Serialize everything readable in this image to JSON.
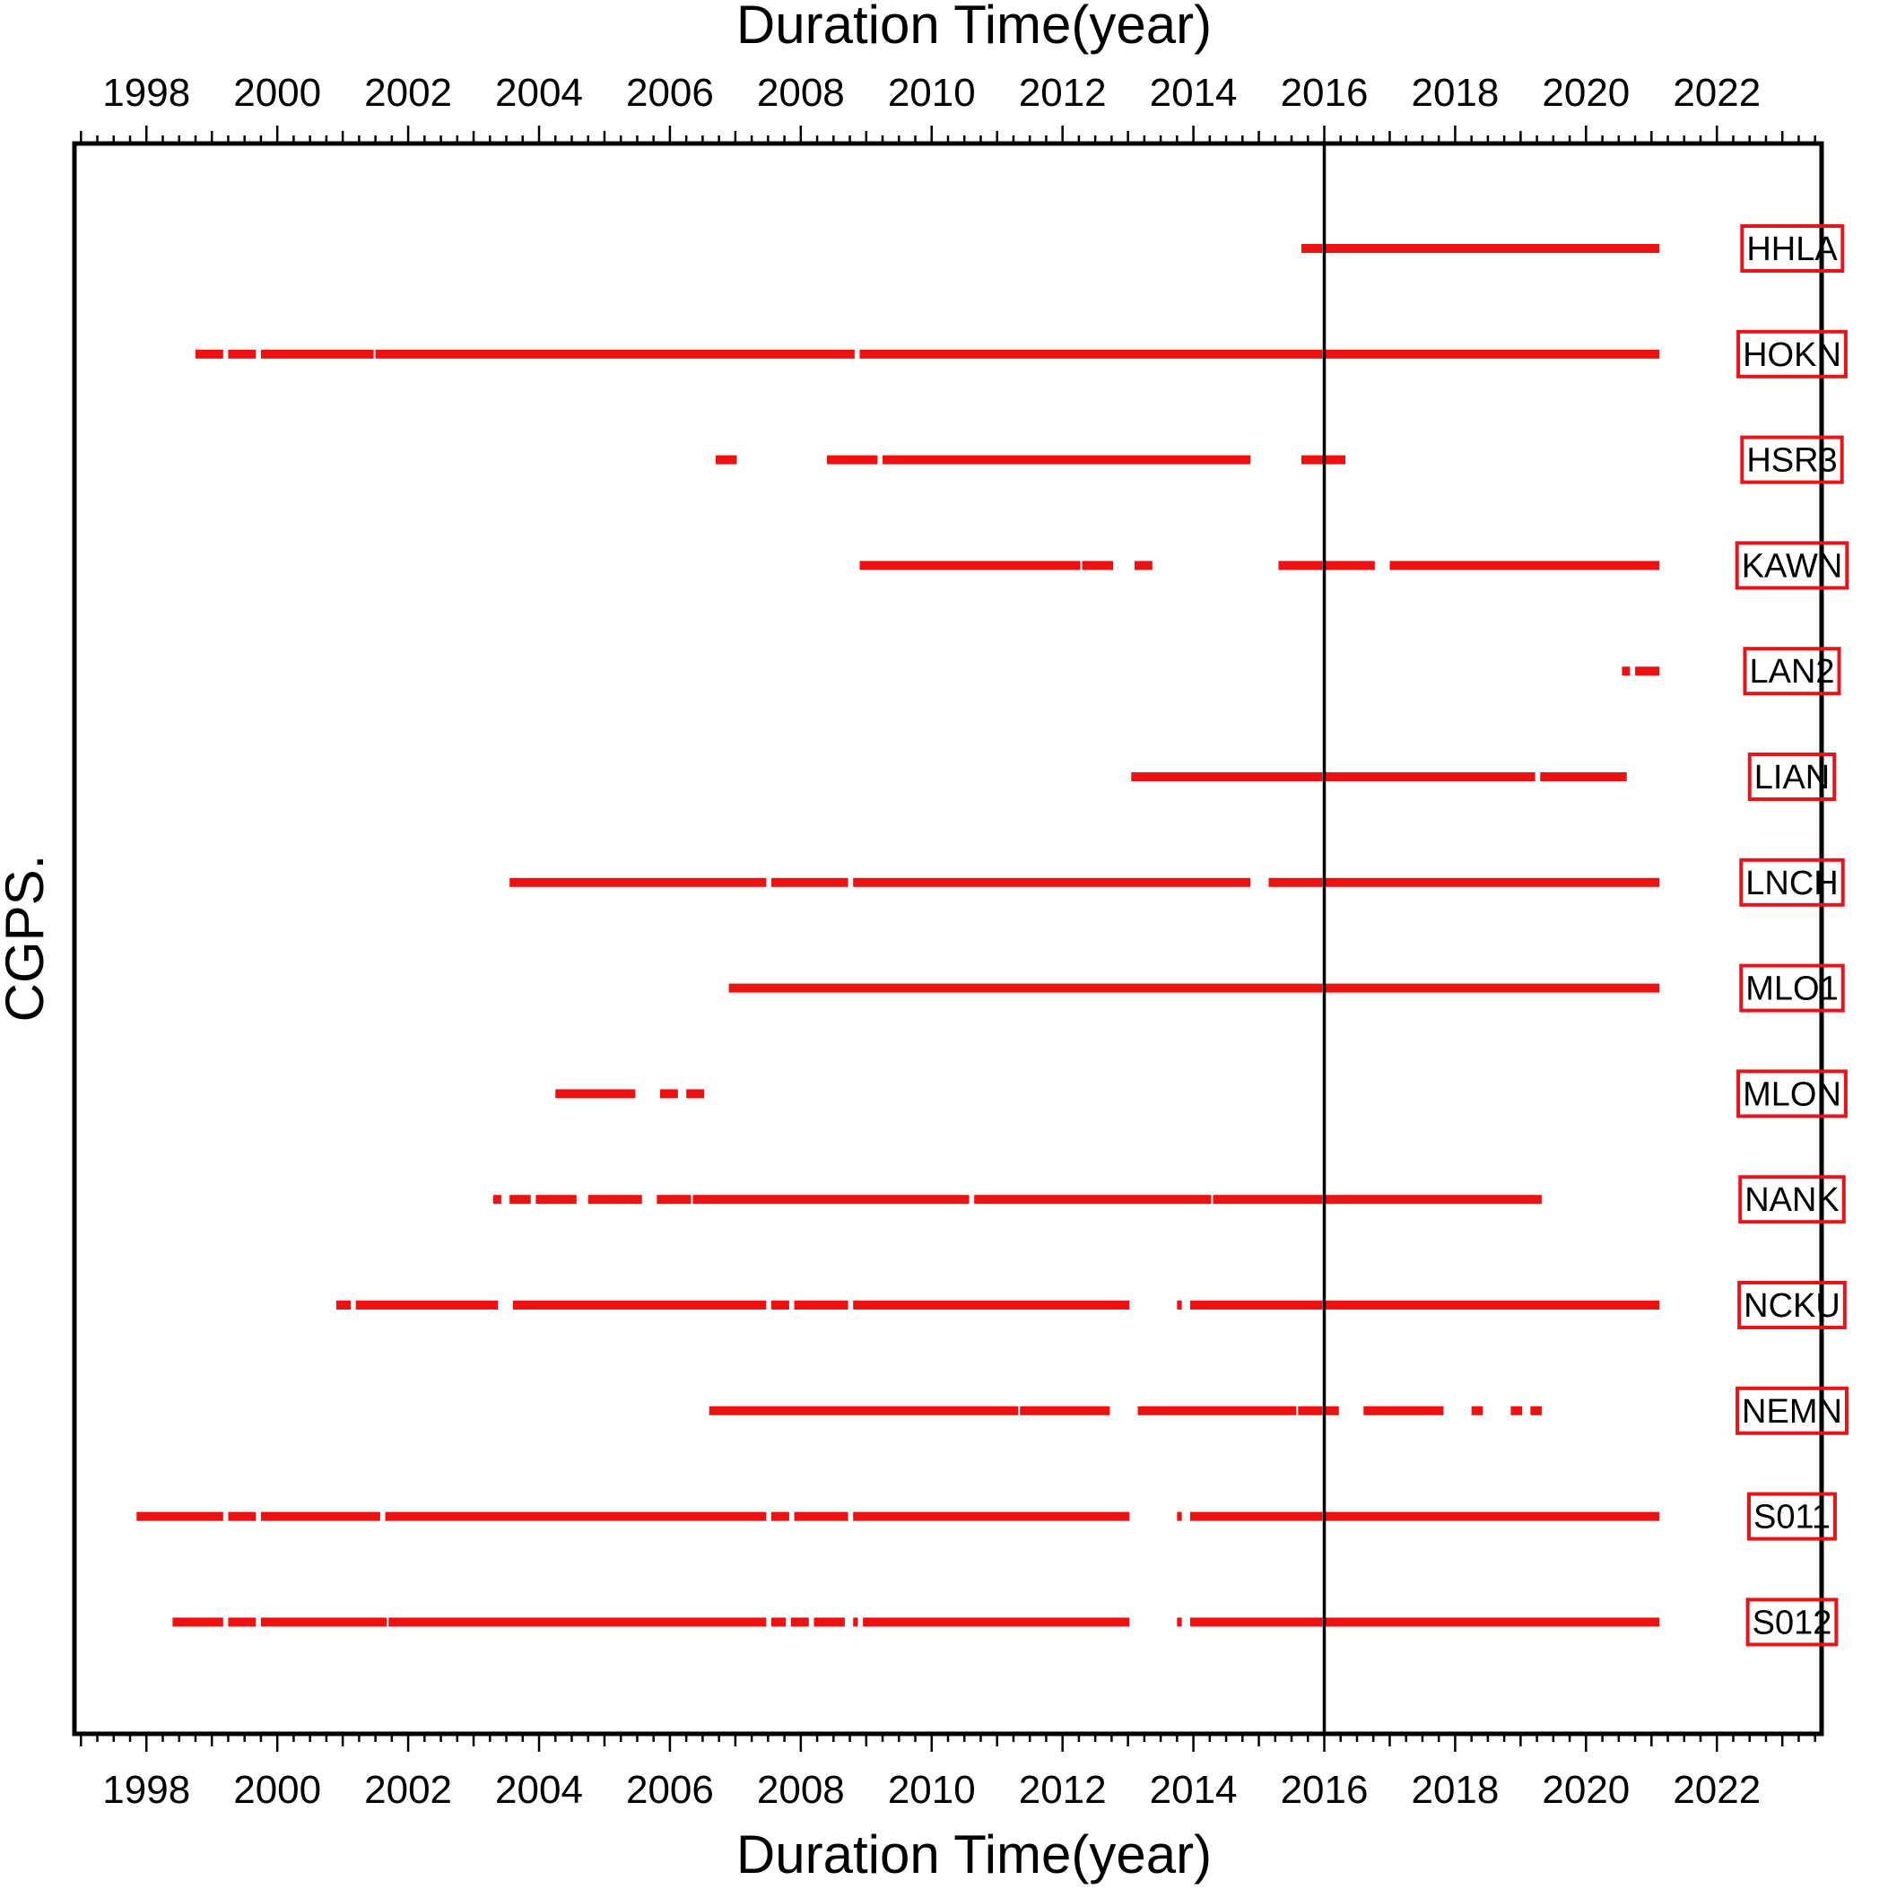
{
  "chart_data": {
    "type": "timeline",
    "xlabel": "Duration Time(year)",
    "ylabel": "CGPS.",
    "xlim": [
      1996.9,
      2023.6
    ],
    "x_ticks": [
      1998,
      2000,
      2002,
      2004,
      2006,
      2008,
      2010,
      2012,
      2014,
      2016,
      2018,
      2020,
      2022
    ],
    "reference_line": 2016.0,
    "colors": {
      "data": "#ee1111",
      "label_border": "#e8141c",
      "frame": "#000000"
    },
    "stations": [
      {
        "name": "HHLA",
        "segments": [
          [
            2015.65,
            2016.0
          ],
          [
            2016.0,
            2021.15
          ]
        ]
      },
      {
        "name": "HOKN",
        "segments": [
          [
            1998.75,
            1999.2
          ],
          [
            1999.25,
            1999.7
          ],
          [
            1999.75,
            2001.5
          ],
          [
            2001.5,
            2008.85
          ],
          [
            2008.9,
            2016.0
          ],
          [
            2016.0,
            2021.15
          ]
        ]
      },
      {
        "name": "HSR3",
        "segments": [
          [
            2006.7,
            2007.05
          ],
          [
            2008.4,
            2009.2
          ],
          [
            2009.25,
            2014.9
          ],
          [
            2015.65,
            2016.35
          ]
        ]
      },
      {
        "name": "KAWN",
        "segments": [
          [
            2008.9,
            2012.3
          ],
          [
            2012.3,
            2012.8
          ],
          [
            2013.1,
            2013.4
          ],
          [
            2015.3,
            2016.0
          ],
          [
            2016.0,
            2016.8
          ],
          [
            2017.0,
            2021.15
          ]
        ]
      },
      {
        "name": "LAN2",
        "segments": [
          [
            2020.55,
            2020.7
          ],
          [
            2020.75,
            2021.15
          ]
        ]
      },
      {
        "name": "LIAN",
        "segments": [
          [
            2013.05,
            2016.0
          ],
          [
            2016.0,
            2019.25
          ],
          [
            2019.3,
            2020.65
          ]
        ]
      },
      {
        "name": "LNCH",
        "segments": [
          [
            2003.55,
            2007.5
          ],
          [
            2007.55,
            2008.75
          ],
          [
            2008.8,
            2014.9
          ],
          [
            2015.15,
            2016.0
          ],
          [
            2016.0,
            2021.15
          ]
        ]
      },
      {
        "name": "MLO1",
        "segments": [
          [
            2006.9,
            2016.0
          ],
          [
            2016.0,
            2021.15
          ]
        ]
      },
      {
        "name": "MLON",
        "segments": [
          [
            2004.25,
            2005.5
          ],
          [
            2005.85,
            2006.15
          ],
          [
            2006.25,
            2006.55
          ]
        ]
      },
      {
        "name": "NANK",
        "segments": [
          [
            2003.3,
            2003.45
          ],
          [
            2003.55,
            2003.9
          ],
          [
            2003.95,
            2004.6
          ],
          [
            2004.75,
            2005.6
          ],
          [
            2005.8,
            2006.35
          ],
          [
            2006.35,
            2010.6
          ],
          [
            2010.65,
            2014.3
          ],
          [
            2014.3,
            2016.0
          ],
          [
            2016.0,
            2019.35
          ]
        ]
      },
      {
        "name": "NCKU",
        "segments": [
          [
            2000.9,
            2001.15
          ],
          [
            2001.2,
            2003.4
          ],
          [
            2003.6,
            2007.5
          ],
          [
            2007.55,
            2007.85
          ],
          [
            2007.9,
            2008.75
          ],
          [
            2008.8,
            2013.05
          ],
          [
            2013.75,
            2013.85
          ],
          [
            2013.95,
            2016.0
          ],
          [
            2016.0,
            2021.15
          ]
        ]
      },
      {
        "name": "NEMN",
        "segments": [
          [
            2006.6,
            2011.35
          ],
          [
            2011.35,
            2012.75
          ],
          [
            2013.15,
            2015.6
          ],
          [
            2015.6,
            2016.0
          ],
          [
            2016.0,
            2016.25
          ],
          [
            2016.6,
            2017.85
          ],
          [
            2018.25,
            2018.45
          ],
          [
            2018.85,
            2019.05
          ],
          [
            2019.15,
            2019.35
          ]
        ]
      },
      {
        "name": "S011",
        "segments": [
          [
            1997.85,
            1999.2
          ],
          [
            1999.25,
            1999.7
          ],
          [
            1999.75,
            2001.6
          ],
          [
            2001.65,
            2007.5
          ],
          [
            2007.55,
            2007.85
          ],
          [
            2007.9,
            2008.75
          ],
          [
            2008.8,
            2013.05
          ],
          [
            2013.75,
            2013.85
          ],
          [
            2013.95,
            2016.0
          ],
          [
            2016.0,
            2021.15
          ]
        ]
      },
      {
        "name": "S012",
        "segments": [
          [
            1998.4,
            1999.2
          ],
          [
            1999.25,
            1999.7
          ],
          [
            1999.75,
            2001.7
          ],
          [
            2001.7,
            2007.5
          ],
          [
            2007.55,
            2007.8
          ],
          [
            2007.85,
            2008.15
          ],
          [
            2008.2,
            2008.7
          ],
          [
            2008.8,
            2008.9
          ],
          [
            2008.95,
            2013.05
          ],
          [
            2013.75,
            2013.85
          ],
          [
            2013.95,
            2016.0
          ],
          [
            2016.0,
            2021.15
          ]
        ]
      }
    ]
  }
}
